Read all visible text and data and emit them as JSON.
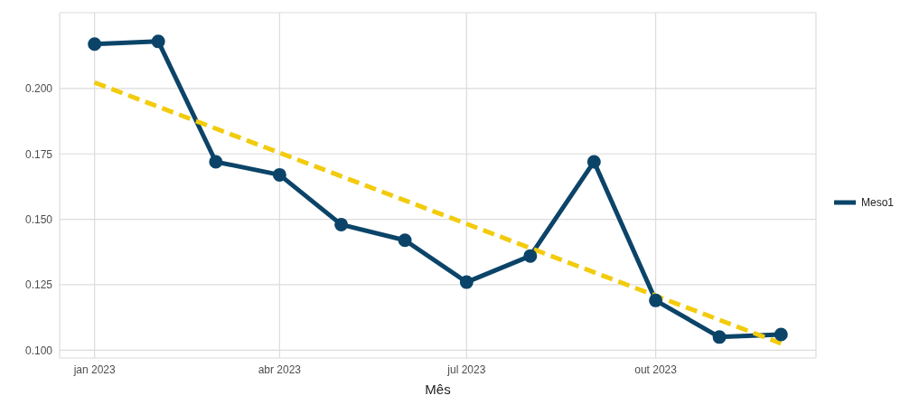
{
  "chart_data": {
    "type": "line",
    "xlabel": "Mês",
    "x": [
      "2023-01",
      "2023-02",
      "2023-03",
      "2023-04",
      "2023-05",
      "2023-06",
      "2023-07",
      "2023-08",
      "2023-09",
      "2023-10",
      "2023-11",
      "2023-12"
    ],
    "series": [
      {
        "name": "Meso1",
        "color": "#0b4468",
        "values": [
          0.217,
          0.218,
          0.172,
          0.167,
          0.148,
          0.142,
          0.126,
          0.136,
          0.172,
          0.119,
          0.105,
          0.106
        ],
        "marker": "circle",
        "line_style": "solid"
      },
      {
        "type": "line",
        "color": "#f2cb0c",
        "x": [
          "2023-01",
          "2023-12"
        ],
        "values": [
          0.2023,
          0.1026
        ],
        "marker": "none",
        "line_style": "dashed"
      }
    ],
    "xlim": [
      "2022-12-15",
      "2023-12-18"
    ],
    "xticks": [
      {
        "value": "2023-01",
        "label": "jan 2023"
      },
      {
        "value": "2023-04",
        "label": "abr 2023"
      },
      {
        "value": "2023-07",
        "label": "jul 2023"
      },
      {
        "value": "2023-10",
        "label": "out 2023"
      }
    ],
    "ylim": [
      0.097,
      0.229
    ],
    "yticks": [
      {
        "value": 0.1,
        "label": "0.100"
      },
      {
        "value": 0.125,
        "label": "0.125"
      },
      {
        "value": 0.15,
        "label": "0.150"
      },
      {
        "value": 0.175,
        "label": "0.175"
      },
      {
        "value": 0.2,
        "label": "0.200"
      }
    ],
    "grid": true,
    "legend": "right"
  }
}
